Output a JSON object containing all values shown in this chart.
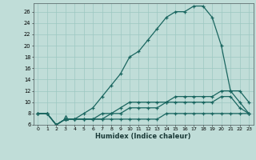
{
  "xlabel": "Humidex (Indice chaleur)",
  "bg_color": "#c0ddd8",
  "grid_color": "#9dc8c2",
  "line_color": "#1a6660",
  "xlim": [
    -0.5,
    23.5
  ],
  "ylim": [
    6,
    27.5
  ],
  "x": [
    0,
    1,
    2,
    3,
    4,
    5,
    6,
    7,
    8,
    9,
    10,
    11,
    12,
    13,
    14,
    15,
    16,
    17,
    18,
    19,
    20,
    21,
    22,
    23
  ],
  "line_main": [
    8,
    8,
    6,
    7,
    7,
    8,
    9,
    11,
    13,
    15,
    18,
    19,
    21,
    23,
    25,
    26,
    26,
    27,
    27,
    25,
    20,
    12,
    12,
    10
  ],
  "line_mid1": [
    8,
    8,
    6,
    7,
    7,
    7,
    7,
    8,
    8,
    9,
    10,
    10,
    10,
    10,
    10,
    11,
    11,
    11,
    11,
    11,
    12,
    12,
    10,
    8
  ],
  "line_mid2": [
    8,
    8,
    6,
    7,
    7,
    7,
    7,
    7,
    8,
    8,
    9,
    9,
    9,
    9,
    10,
    10,
    10,
    10,
    10,
    10,
    11,
    11,
    9,
    8
  ],
  "line_base": [
    8,
    8,
    6,
    7,
    7,
    7,
    7,
    7,
    7,
    7,
    7,
    7,
    7,
    7,
    8,
    8,
    8,
    8,
    8,
    8,
    8,
    8,
    8,
    8
  ],
  "yticks": [
    6,
    8,
    10,
    12,
    14,
    16,
    18,
    20,
    22,
    24,
    26
  ],
  "xticks": [
    0,
    1,
    2,
    3,
    4,
    5,
    6,
    7,
    8,
    9,
    10,
    11,
    12,
    13,
    14,
    15,
    16,
    17,
    18,
    19,
    20,
    21,
    22,
    23
  ],
  "xtick_labels": [
    "0",
    "1",
    "2",
    "3",
    "4",
    "5",
    "6",
    "7",
    "8",
    "9",
    "10",
    "11",
    "12",
    "13",
    "14",
    "15",
    "16",
    "17",
    "18",
    "19",
    "20",
    "21",
    "22",
    "23"
  ]
}
